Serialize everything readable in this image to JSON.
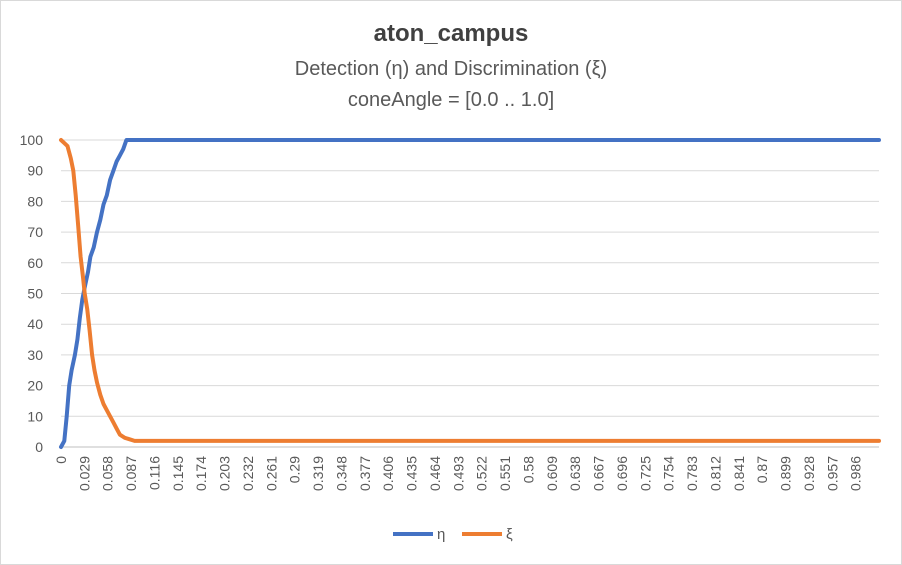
{
  "chart_data": {
    "type": "line",
    "title": "aton_campus",
    "subtitle": "Detection (η) and Discrimination (ξ)",
    "subtitle2": "coneAngle = [0.0 .. 1.0]",
    "xlabel": "",
    "ylabel": "",
    "xlim": [
      0,
      1.0
    ],
    "ylim": [
      0,
      100
    ],
    "y_ticks": [
      0,
      10,
      20,
      30,
      40,
      50,
      60,
      70,
      80,
      90,
      100
    ],
    "x_tick_labels": [
      "0",
      "0.029",
      "0.058",
      "0.087",
      "0.116",
      "0.145",
      "0.174",
      "0.203",
      "0.232",
      "0.261",
      "0.29",
      "0.319",
      "0.348",
      "0.377",
      "0.406",
      "0.435",
      "0.464",
      "0.493",
      "0.522",
      "0.551",
      "0.58",
      "0.609",
      "0.638",
      "0.667",
      "0.696",
      "0.725",
      "0.754",
      "0.783",
      "0.812",
      "0.841",
      "0.87",
      "0.899",
      "0.928",
      "0.957",
      "0.986"
    ],
    "grid": true,
    "legend_position": "bottom",
    "series": [
      {
        "name": "η",
        "color": "#4472c4",
        "x": [
          0,
          0.004,
          0.007,
          0.01,
          0.013,
          0.017,
          0.02,
          0.023,
          0.026,
          0.029,
          0.033,
          0.036,
          0.04,
          0.044,
          0.048,
          0.052,
          0.056,
          0.06,
          0.064,
          0.068,
          0.072,
          0.076,
          0.08,
          0.084,
          0.088,
          0.092,
          0.096,
          0.1,
          0.104,
          1.0
        ],
        "values": [
          0,
          2,
          10,
          20,
          25,
          30,
          35,
          42,
          48,
          52,
          57,
          62,
          65,
          70,
          74,
          79,
          82,
          87,
          90,
          93,
          95,
          97,
          100,
          100,
          100,
          100,
          100,
          100,
          100,
          100
        ]
      },
      {
        "name": "ξ",
        "color": "#ed7d31",
        "x": [
          0,
          0.004,
          0.008,
          0.012,
          0.015,
          0.018,
          0.021,
          0.024,
          0.027,
          0.029,
          0.032,
          0.035,
          0.038,
          0.041,
          0.044,
          0.048,
          0.052,
          0.056,
          0.06,
          0.064,
          0.068,
          0.072,
          0.078,
          0.084,
          0.09,
          0.096,
          0.102,
          0.11,
          0.13,
          1.0
        ],
        "values": [
          100,
          99,
          98,
          94,
          90,
          82,
          72,
          62,
          55,
          50,
          45,
          38,
          30,
          25,
          21,
          17,
          14,
          12,
          10,
          8,
          6,
          4,
          3,
          2.5,
          2,
          2,
          2,
          2,
          2,
          2
        ]
      }
    ]
  }
}
